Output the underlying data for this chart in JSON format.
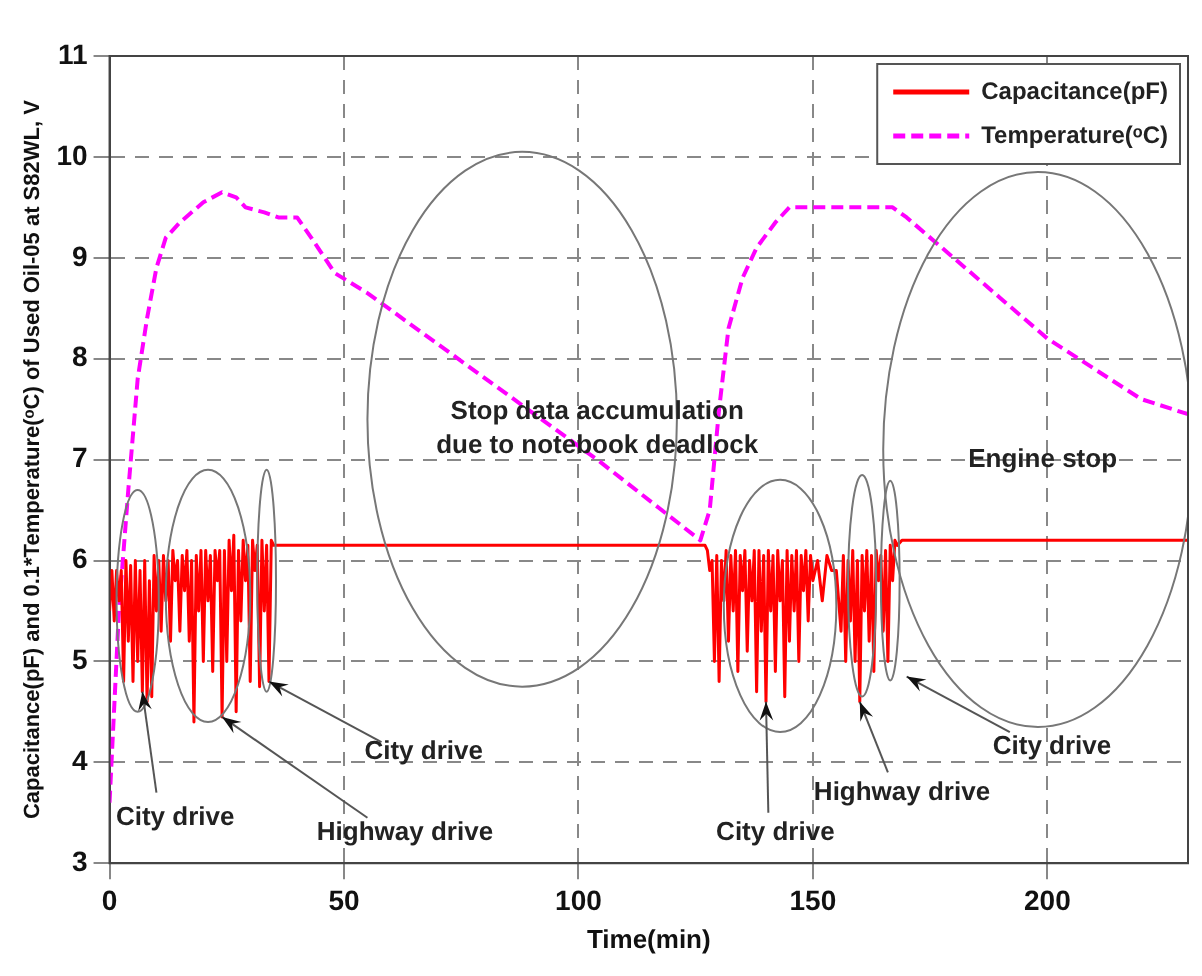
{
  "chart_data": {
    "type": "line",
    "xlabel": "Time(min)",
    "ylabel": "Capacitance(pF) and 0.1*Temperature(ᵒC) of Used Oil-05 at S82WL, V",
    "xlim": [
      0,
      230
    ],
    "xticks": [
      0,
      50,
      100,
      150,
      200
    ],
    "ylim": [
      3,
      11
    ],
    "yticks": [
      3,
      4,
      5,
      6,
      7,
      8,
      9,
      10,
      11
    ],
    "grid": true,
    "legend": "top right",
    "series": [
      {
        "name": "Capacitance(pF)",
        "color": "#ff0000",
        "line_style": "solid",
        "x": [
          0,
          0.5,
          1,
          1.5,
          2,
          2.5,
          3,
          3.5,
          4,
          4.5,
          5,
          5.5,
          6,
          6.5,
          7,
          7.5,
          8,
          8.5,
          9,
          9.5,
          10,
          10.5,
          11,
          11.5,
          12,
          12.5,
          13,
          13.5,
          14,
          14.5,
          15,
          15.5,
          16,
          16.5,
          17,
          17.5,
          18,
          18.5,
          19,
          19.5,
          20,
          20.5,
          21,
          21.5,
          22,
          22.5,
          23,
          23.5,
          24,
          24.5,
          25,
          25.5,
          26,
          26.5,
          27,
          27.5,
          28,
          28.5,
          29,
          29.5,
          30,
          30.5,
          31,
          31.5,
          32,
          32.5,
          33,
          33.5,
          34,
          34.5,
          35,
          127,
          127.5,
          128,
          128.5,
          129,
          129.5,
          130,
          130.5,
          131,
          131.5,
          132,
          132.5,
          133,
          133.5,
          134,
          134.5,
          135,
          135.5,
          136,
          136.5,
          137,
          137.5,
          138,
          138.5,
          139,
          139.5,
          140,
          140.5,
          141,
          141.5,
          142,
          142.5,
          143,
          143.5,
          144,
          144.5,
          145,
          145.5,
          146,
          146.5,
          147,
          147.5,
          148,
          148.5,
          149,
          149.5,
          150,
          151,
          152,
          153,
          154,
          155,
          156,
          156.5,
          157,
          157.5,
          158,
          158.5,
          159,
          159.5,
          160,
          160.5,
          161,
          161.5,
          162,
          162.5,
          163,
          163.5,
          164,
          164.5,
          165,
          165.5,
          166,
          166.5,
          167,
          167.5,
          168,
          169,
          170,
          230
        ],
        "values": [
          5.5,
          5.9,
          5.4,
          5.9,
          5.6,
          5.9,
          4.8,
          6.0,
          5.2,
          5.95,
          4.8,
          6.0,
          5.0,
          5.9,
          4.7,
          6.0,
          4.6,
          5.8,
          4.65,
          6.05,
          5.5,
          6.0,
          5.3,
          6.05,
          5.6,
          6.0,
          5.2,
          6.1,
          5.8,
          6.0,
          5.3,
          6.05,
          5.7,
          6.1,
          5.2,
          6.0,
          4.4,
          6.05,
          5.5,
          6.1,
          5.0,
          6.1,
          5.6,
          6.05,
          4.9,
          6.1,
          5.8,
          6.1,
          4.45,
          6.1,
          5.0,
          6.2,
          5.7,
          6.25,
          4.5,
          6.1,
          5.4,
          6.2,
          5.8,
          6.15,
          4.8,
          6.2,
          5.9,
          6.15,
          4.75,
          6.2,
          5.5,
          6.15,
          4.8,
          6.2,
          6.15,
          6.15,
          6.1,
          5.9,
          6.0,
          5.0,
          6.05,
          4.8,
          6.0,
          5.6,
          6.1,
          5.2,
          6.05,
          5.5,
          6.1,
          4.9,
          6.05,
          5.7,
          6.1,
          5.1,
          6.0,
          5.6,
          6.1,
          4.7,
          6.1,
          5.3,
          6.05,
          4.6,
          6.1,
          5.5,
          6.05,
          4.9,
          6.1,
          5.6,
          6.0,
          4.65,
          6.1,
          5.2,
          6.05,
          5.5,
          6.1,
          5.0,
          6.05,
          5.7,
          6.1,
          5.4,
          6.05,
          5.8,
          6.0,
          5.6,
          6.05,
          5.9,
          5.9,
          5.3,
          6.05,
          5.0,
          6.0,
          5.4,
          6.1,
          5.0,
          6.0,
          4.6,
          6.05,
          5.5,
          6.1,
          5.2,
          6.05,
          4.9,
          6.1,
          5.8,
          6.05,
          5.3,
          6.1,
          5.0,
          6.15,
          5.8,
          6.2,
          6.15,
          6.2,
          6.2,
          6.2
        ]
      },
      {
        "name": "Temperature(ᵒC)",
        "color": "#ff00ff",
        "line_style": "dashed",
        "x": [
          0,
          2,
          4,
          6,
          8,
          10,
          12,
          15,
          20,
          24,
          27,
          29,
          33,
          36,
          40,
          43,
          48,
          55,
          104,
          126,
          128,
          130,
          132,
          135,
          138,
          142,
          145,
          160,
          167,
          170,
          180,
          190,
          200,
          210,
          220,
          230
        ],
        "values": [
          3.6,
          5.5,
          6.7,
          7.8,
          8.4,
          8.9,
          9.2,
          9.35,
          9.55,
          9.65,
          9.6,
          9.5,
          9.45,
          9.4,
          9.4,
          9.2,
          8.85,
          8.65,
          7.0,
          6.2,
          6.5,
          7.5,
          8.3,
          8.8,
          9.1,
          9.35,
          9.5,
          9.5,
          9.5,
          9.4,
          9.0,
          8.6,
          8.2,
          7.9,
          7.6,
          7.45
        ]
      }
    ],
    "annotations": [
      "Stop data accumulation\ndue to notebook deadlock",
      "Engine stop",
      {
        "text": "City drive",
        "x": 7,
        "y": 4.7
      },
      {
        "text": "Highway drive",
        "x": 24,
        "y": 4.45
      },
      {
        "text": "City drive",
        "x": 34,
        "y": 4.8
      },
      {
        "text": "City drive",
        "x": 140,
        "y": 4.6
      },
      {
        "text": "Highway drive",
        "x": 160,
        "y": 4.6
      },
      "City drive"
    ]
  }
}
